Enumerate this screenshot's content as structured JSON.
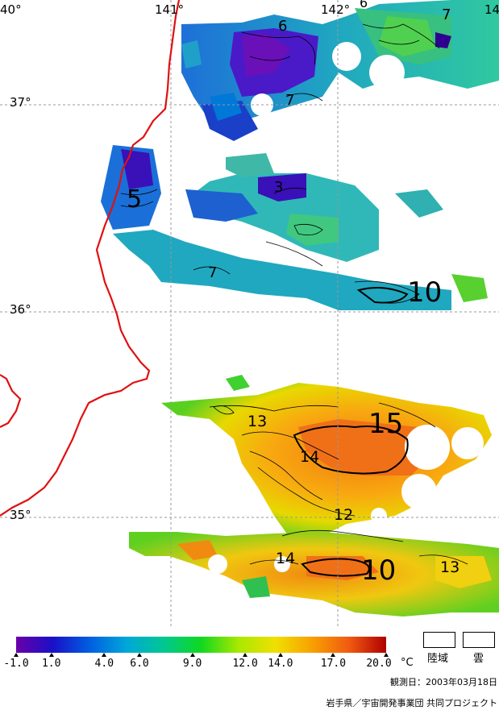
{
  "map": {
    "lon_labels": [
      "40°",
      "141°",
      "142°",
      "14"
    ],
    "lat_labels": [
      "37°",
      "36°",
      "35°"
    ],
    "contour_labels": [
      "6",
      "7",
      "5",
      "3",
      "7",
      "10",
      "13",
      "15",
      "14",
      "12",
      "14",
      "10",
      "13",
      "6",
      "7"
    ]
  },
  "colorbar": {
    "ticks": [
      "-1.0",
      "1.0",
      "4.0",
      "6.0",
      "9.0",
      "12.0",
      "14.0",
      "17.0",
      "20.0"
    ],
    "unit": "°C",
    "colors": [
      "#6a00a8",
      "#1a10c8",
      "#0060e0",
      "#00a8d8",
      "#00c890",
      "#10d820",
      "#a8e800",
      "#f0e000",
      "#f8a000",
      "#f05a10",
      "#b00000"
    ]
  },
  "legend": {
    "land": "陸域",
    "cloud": "雲"
  },
  "observation": "観測日：2003年03月18日",
  "credit": "岩手県／宇宙開発事業団  共同プロジェクト"
}
